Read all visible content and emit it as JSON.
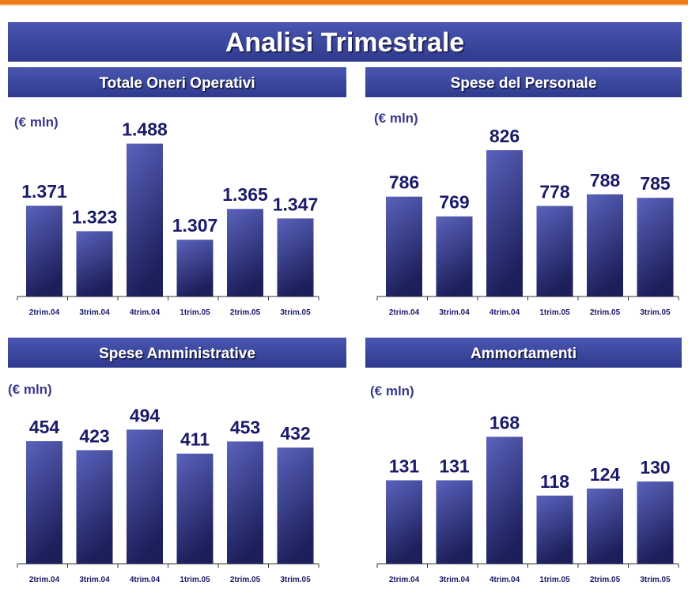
{
  "header": {
    "title": "Analisi Trimestrale"
  },
  "chart_data": [
    {
      "type": "bar",
      "title": "Totale Oneri Operativi",
      "unit": "(€ mln)",
      "categories": [
        "2trim.04",
        "3trim.04",
        "4trim.04",
        "1trim.05",
        "2trim.05",
        "3trim.05"
      ],
      "values": [
        1371,
        1323,
        1488,
        1307,
        1365,
        1347
      ],
      "value_labels": [
        "1.371",
        "1.323",
        "1.488",
        "1.307",
        "1.365",
        "1.347"
      ],
      "ylim": [
        1200,
        1550
      ],
      "color": "#5a62bc"
    },
    {
      "type": "bar",
      "title": "Spese del Personale",
      "unit": "(€ mln)",
      "categories": [
        "2trim.04",
        "3trim.04",
        "4trim.04",
        "1trim.05",
        "2trim.05",
        "3trim.05"
      ],
      "values": [
        786,
        769,
        826,
        778,
        788,
        785
      ],
      "ylim": [
        700,
        860
      ],
      "color": "#5a62bc"
    },
    {
      "type": "bar",
      "title": "Spese Amministrative",
      "unit": "(€ mln)",
      "categories": [
        "2trim.04",
        "3trim.04",
        "4trim.04",
        "1trim.05",
        "2trim.05",
        "3trim.05"
      ],
      "values": [
        454,
        423,
        494,
        411,
        453,
        432
      ],
      "ylim": [
        30,
        640
      ],
      "color": "#5a62bc"
    },
    {
      "type": "bar",
      "title": "Ammortamenti",
      "unit": "(€ mln)",
      "categories": [
        "2trim.04",
        "3trim.04",
        "4trim.04",
        "1trim.05",
        "2trim.05",
        "3trim.05"
      ],
      "values": [
        131,
        131,
        168,
        118,
        124,
        130
      ],
      "ylim": [
        60,
        210
      ],
      "color": "#5a62bc"
    }
  ]
}
